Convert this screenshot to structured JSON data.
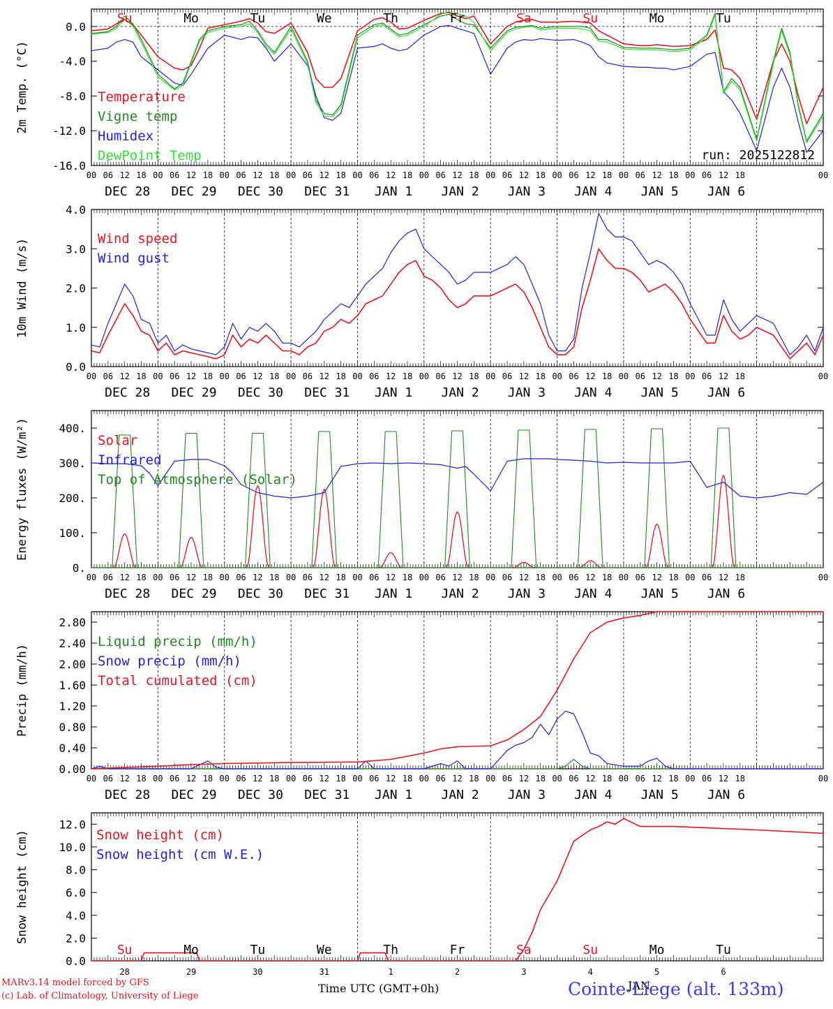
{
  "colors": {
    "red": "#e8141e",
    "green": "#1e8a1e",
    "lightgreen": "#2ee62e",
    "blue": "#1e1ee6",
    "axis": "#000000",
    "label_blue": "#3a3af0"
  },
  "days": {
    "top": [
      "Su",
      "Mo",
      "Tu",
      "We",
      "Th",
      "Fr",
      "Sa",
      "Su",
      "Mo",
      "Tu"
    ],
    "top_colors": [
      "red",
      "black",
      "black",
      "black",
      "black",
      "black",
      "red",
      "red",
      "black",
      "black"
    ],
    "hour_ticks": [
      "00",
      "06",
      "12",
      "18"
    ],
    "end_tick": "00",
    "dates": [
      "DEC 28",
      "DEC 29",
      "DEC 30",
      "DEC 31",
      "JAN  1",
      "JAN  2",
      "JAN  3",
      "JAN  4",
      "JAN  5",
      "JAN  6"
    ],
    "bottom_numbers": [
      "28",
      "29",
      "30",
      "31",
      "1",
      "2",
      "3",
      "4",
      "5",
      "6"
    ]
  },
  "chart_data": [
    {
      "id": "temp",
      "type": "line",
      "ylabel": "2m Temp. (°C)",
      "ylim": [
        -16,
        2
      ],
      "yticks": [
        0,
        -4,
        -8,
        -12,
        -16
      ],
      "ytick_labels": [
        "0.0",
        "-4.0",
        "-8.0",
        "-12.0",
        "-16.0"
      ],
      "zero_line": true,
      "annotation": "run: 2025122812",
      "x_hours": [
        0,
        6,
        9,
        12,
        15,
        18,
        24,
        30,
        33,
        36,
        39,
        42,
        48,
        54,
        57,
        60,
        63,
        66,
        72,
        78,
        81,
        84,
        87,
        90,
        96,
        102,
        105,
        108,
        111,
        114,
        120,
        126,
        129,
        132,
        135,
        138,
        144,
        150,
        153,
        156,
        159,
        162,
        168,
        174,
        177,
        180,
        183,
        186,
        192,
        198,
        201,
        204,
        207,
        210,
        216,
        222,
        225,
        228,
        231,
        234,
        240,
        246,
        249,
        252,
        255,
        258,
        264
      ],
      "series": [
        {
          "name": "Temperature",
          "color": "red",
          "values": [
            -0.5,
            -0.3,
            0.3,
            0.8,
            0.2,
            -1.0,
            -3.5,
            -4.8,
            -5.0,
            -4.5,
            -2.5,
            -0.2,
            0.2,
            0.6,
            0.9,
            0.4,
            -0.6,
            -0.8,
            0.4,
            -3.0,
            -6.0,
            -7.0,
            -7.0,
            -6.0,
            -0.5,
            0.8,
            1.0,
            0.5,
            -0.3,
            -0.2,
            0.7,
            1.5,
            1.6,
            1.2,
            0.9,
            1.2,
            -2.0,
            0.0,
            0.5,
            0.7,
            0.8,
            0.5,
            0.5,
            0.6,
            0.5,
            0.4,
            -0.5,
            -1.0,
            -2.0,
            -2.2,
            -2.2,
            -2.1,
            -2.2,
            -2.3,
            -2.2,
            -1.5,
            -0.4,
            -4.8,
            -5.0,
            -6.0,
            -10.7,
            -4.0,
            -2.0,
            -4.0,
            -8.0,
            -11.2,
            -7.0
          ]
        },
        {
          "name": "Vigne temp",
          "color": "green",
          "values": [
            -0.8,
            -0.6,
            0.0,
            1.2,
            0.3,
            -1.5,
            -5.5,
            -7.2,
            -6.5,
            -4.0,
            -1.5,
            -0.5,
            0.0,
            0.2,
            0.6,
            -0.5,
            -2.0,
            -3.0,
            0.0,
            -4.0,
            -8.5,
            -10.0,
            -10.2,
            -9.0,
            -1.0,
            0.2,
            0.4,
            -0.3,
            -1.0,
            -0.8,
            0.2,
            1.2,
            1.4,
            0.8,
            0.3,
            0.2,
            -2.5,
            -0.5,
            -0.1,
            0.0,
            0.1,
            -0.2,
            0.0,
            0.0,
            0.0,
            -0.2,
            -1.5,
            -1.5,
            -2.4,
            -2.5,
            -2.5,
            -2.5,
            -2.6,
            -2.7,
            -2.5,
            -1.0,
            1.5,
            -7.5,
            -6.0,
            -7.0,
            -13.0,
            -4.0,
            -0.2,
            -3.0,
            -9.0,
            -13.2,
            -10.0
          ]
        },
        {
          "name": "Humidex",
          "color": "blue",
          "values": [
            -2.8,
            -2.5,
            -1.8,
            -1.5,
            -1.8,
            -3.5,
            -5.0,
            -6.5,
            -6.8,
            -5.5,
            -4.0,
            -2.5,
            -1.0,
            -1.5,
            -1.2,
            -1.3,
            -2.5,
            -4.0,
            -2.0,
            -4.5,
            -8.0,
            -10.5,
            -10.8,
            -10.0,
            -2.5,
            -2.3,
            -2.0,
            -2.5,
            -2.8,
            -2.6,
            -1.0,
            0.0,
            0.1,
            -0.2,
            -0.5,
            -0.8,
            -5.5,
            -2.5,
            -1.8,
            -1.5,
            -1.6,
            -1.4,
            -1.6,
            -1.5,
            -1.8,
            -2.2,
            -3.5,
            -4.2,
            -4.6,
            -4.7,
            -4.7,
            -4.8,
            -4.8,
            -5.0,
            -4.6,
            -3.2,
            -3.0,
            -7.5,
            -8.5,
            -10.0,
            -14.3,
            -7.0,
            -4.8,
            -7.0,
            -11.0,
            -14.5,
            -12.0
          ]
        },
        {
          "name": "DewPoint Temp",
          "color": "lightgreen",
          "values": [
            -0.9,
            -0.7,
            -0.2,
            0.9,
            0.0,
            -1.8,
            -5.8,
            -7.3,
            -6.8,
            -4.2,
            -1.7,
            -0.7,
            -0.2,
            0.0,
            0.3,
            -0.7,
            -2.3,
            -3.2,
            -0.3,
            -4.3,
            -8.8,
            -10.3,
            -10.4,
            -9.3,
            -1.3,
            0.0,
            0.2,
            -0.5,
            -1.2,
            -1.0,
            0.0,
            1.4,
            1.7,
            1.5,
            1.2,
            0.5,
            -2.8,
            -0.7,
            -0.3,
            -0.1,
            0.0,
            -0.4,
            -0.2,
            -0.2,
            -0.3,
            -0.5,
            -1.7,
            -1.8,
            -2.6,
            -2.7,
            -2.7,
            -2.7,
            -2.8,
            -2.9,
            -2.7,
            -1.2,
            1.3,
            -7.7,
            -6.3,
            -7.3,
            -13.2,
            -4.3,
            -0.5,
            -3.3,
            -9.3,
            -13.4,
            -10.3
          ]
        }
      ]
    },
    {
      "id": "wind",
      "type": "line",
      "ylabel": "10m Wind (m/s)",
      "ylim": [
        0,
        4
      ],
      "yticks": [
        0,
        1,
        2,
        3,
        4
      ],
      "ytick_labels": [
        "0.0",
        "1.0",
        "2.0",
        "3.0",
        "4.0"
      ],
      "x_hours": [
        0,
        3,
        6,
        9,
        12,
        15,
        18,
        21,
        24,
        27,
        30,
        33,
        36,
        39,
        42,
        45,
        48,
        51,
        54,
        57,
        60,
        63,
        66,
        69,
        72,
        75,
        78,
        81,
        84,
        87,
        90,
        93,
        96,
        99,
        102,
        105,
        108,
        111,
        114,
        117,
        120,
        123,
        126,
        129,
        132,
        135,
        138,
        141,
        144,
        147,
        150,
        153,
        156,
        159,
        162,
        165,
        168,
        171,
        174,
        177,
        180,
        183,
        186,
        189,
        192,
        195,
        198,
        201,
        204,
        207,
        210,
        213,
        216,
        219,
        222,
        225,
        228,
        231,
        234,
        237,
        240,
        243,
        246,
        249,
        252,
        255,
        258,
        261,
        264
      ],
      "series": [
        {
          "name": "Wind speed",
          "color": "red",
          "values": [
            0.4,
            0.35,
            0.8,
            1.2,
            1.6,
            1.3,
            0.9,
            0.8,
            0.4,
            0.6,
            0.3,
            0.4,
            0.35,
            0.3,
            0.25,
            0.2,
            0.3,
            0.8,
            0.5,
            0.7,
            0.6,
            0.8,
            0.6,
            0.4,
            0.4,
            0.3,
            0.5,
            0.6,
            0.9,
            1.0,
            1.2,
            1.1,
            1.3,
            1.6,
            1.7,
            1.8,
            2.1,
            2.4,
            2.6,
            2.7,
            2.3,
            2.2,
            2.0,
            1.7,
            1.5,
            1.6,
            1.8,
            1.8,
            1.8,
            1.9,
            2.0,
            2.1,
            1.9,
            1.5,
            1.0,
            0.5,
            0.3,
            0.3,
            0.5,
            1.5,
            2.2,
            3.0,
            2.7,
            2.5,
            2.5,
            2.4,
            2.2,
            1.9,
            2.0,
            2.1,
            1.9,
            1.6,
            1.2,
            0.9,
            0.6,
            0.6,
            1.3,
            0.9,
            0.7,
            0.8,
            1.0,
            0.9,
            0.8,
            0.5,
            0.2,
            0.4,
            0.6,
            0.3,
            0.8
          ]
        },
        {
          "name": "Wind gust",
          "color": "blue",
          "values": [
            0.55,
            0.5,
            1.1,
            1.6,
            2.1,
            1.8,
            1.2,
            1.1,
            0.6,
            0.8,
            0.4,
            0.55,
            0.45,
            0.4,
            0.35,
            0.3,
            0.5,
            1.1,
            0.7,
            1.0,
            0.9,
            1.1,
            0.9,
            0.6,
            0.6,
            0.5,
            0.7,
            0.9,
            1.2,
            1.4,
            1.6,
            1.5,
            1.8,
            2.1,
            2.3,
            2.5,
            2.9,
            3.2,
            3.4,
            3.5,
            3.0,
            2.8,
            2.6,
            2.4,
            2.1,
            2.2,
            2.4,
            2.4,
            2.4,
            2.5,
            2.6,
            2.8,
            2.6,
            2.1,
            1.6,
            0.8,
            0.4,
            0.4,
            0.7,
            2.0,
            2.9,
            3.9,
            3.5,
            3.3,
            3.3,
            3.2,
            2.9,
            2.6,
            2.7,
            2.6,
            2.4,
            2.1,
            1.6,
            1.2,
            0.8,
            0.8,
            1.7,
            1.2,
            0.9,
            1.1,
            1.3,
            1.2,
            1.1,
            0.7,
            0.3,
            0.5,
            0.8,
            0.4,
            1.0
          ]
        }
      ]
    },
    {
      "id": "energy",
      "type": "line",
      "ylabel": "Energy fluxes (W/m²)",
      "ylim": [
        0,
        450
      ],
      "yticks": [
        0,
        100,
        200,
        300,
        400
      ],
      "ytick_labels": [
        "0.",
        "100.",
        "200.",
        "300.",
        "400."
      ],
      "diurnal_peak_hour": 12,
      "solar_peaks": [
        97,
        87,
        235,
        225,
        43,
        160,
        15,
        20,
        125,
        265
      ],
      "toa_peaks": [
        380,
        385,
        385,
        390,
        390,
        392,
        394,
        396,
        398,
        400
      ],
      "series": [
        {
          "name": "Solar",
          "color": "red"
        },
        {
          "name": "Infrared",
          "color": "blue",
          "x_hours": [
            0,
            6,
            12,
            18,
            21,
            24,
            30,
            36,
            42,
            48,
            51,
            54,
            60,
            66,
            72,
            78,
            84,
            90,
            96,
            102,
            108,
            114,
            120,
            126,
            132,
            135,
            138,
            144,
            150,
            156,
            162,
            165,
            168,
            174,
            180,
            186,
            192,
            198,
            204,
            210,
            216,
            222,
            228,
            234,
            240,
            246,
            252,
            258,
            264
          ],
          "values": [
            300,
            298,
            298,
            292,
            270,
            235,
            305,
            310,
            310,
            292,
            270,
            238,
            215,
            205,
            200,
            205,
            215,
            290,
            298,
            300,
            298,
            300,
            298,
            295,
            285,
            290,
            268,
            220,
            305,
            312,
            312,
            312,
            310,
            308,
            305,
            300,
            302,
            300,
            300,
            300,
            305,
            230,
            245,
            205,
            200,
            205,
            215,
            210,
            245
          ]
        },
        {
          "name": "Top of Atmosphere (Solar)",
          "color": "green"
        }
      ]
    },
    {
      "id": "precip",
      "type": "line",
      "ylabel": "Precip (mm/h)",
      "ylim": [
        0,
        3.0
      ],
      "yticks": [
        0,
        0.4,
        0.8,
        1.2,
        1.6,
        2.0,
        2.4,
        2.8
      ],
      "ytick_labels": [
        "0.00",
        "0.40",
        "0.80",
        "1.20",
        "1.60",
        "2.00",
        "2.40",
        "2.80"
      ],
      "series": [
        {
          "name": "Liquid precip (mm/h)",
          "color": "green",
          "x_hours": [
            0,
            168,
            171,
            174,
            177,
            180,
            264
          ],
          "values": [
            0,
            0,
            0.05,
            0.18,
            0.05,
            0,
            0
          ]
        },
        {
          "name": "Snow precip (mm/h)",
          "color": "blue",
          "x_hours": [
            0,
            3,
            6,
            36,
            42,
            45,
            48,
            90,
            96,
            99,
            102,
            108,
            120,
            126,
            129,
            132,
            135,
            138,
            144,
            150,
            153,
            156,
            159,
            162,
            165,
            168,
            171,
            174,
            177,
            180,
            183,
            186,
            192,
            198,
            201,
            204,
            207,
            210,
            264
          ],
          "values": [
            0,
            0.05,
            0,
            0,
            0.15,
            0.03,
            0,
            0,
            0,
            0.15,
            0,
            0,
            0,
            0.1,
            0.05,
            0.15,
            0,
            0,
            0,
            0.35,
            0.45,
            0.5,
            0.6,
            0.85,
            0.65,
            0.95,
            1.1,
            1.05,
            0.7,
            0.3,
            0.25,
            0.1,
            0.05,
            0.05,
            0.15,
            0.2,
            0.05,
            0,
            0
          ]
        },
        {
          "name": "Total cumulated (cm)",
          "color": "red",
          "x_hours": [
            0,
            24,
            36,
            48,
            72,
            96,
            108,
            120,
            126,
            132,
            144,
            150,
            156,
            162,
            168,
            174,
            180,
            186,
            192,
            198,
            204,
            264
          ],
          "values": [
            0,
            0.05,
            0.08,
            0.1,
            0.12,
            0.13,
            0.18,
            0.3,
            0.38,
            0.42,
            0.44,
            0.55,
            0.75,
            1.0,
            1.5,
            2.1,
            2.6,
            2.8,
            2.88,
            2.93,
            3.0,
            3.0
          ]
        }
      ]
    },
    {
      "id": "snow",
      "type": "line",
      "ylabel": "Snow height (cm)",
      "ylim": [
        0,
        13
      ],
      "yticks": [
        0,
        2,
        4,
        6,
        8,
        10,
        12
      ],
      "ytick_labels": [
        "0.0",
        "2.0",
        "4.0",
        "6.0",
        "8.0",
        "10.0",
        "12.0"
      ],
      "series": [
        {
          "name": "Snow height (cm)",
          "color": "red",
          "x_hours": [
            0,
            18,
            19,
            38,
            39,
            96,
            97,
            106,
            107,
            153,
            156,
            159,
            162,
            168,
            174,
            180,
            183,
            186,
            189,
            192,
            198,
            210,
            240,
            264
          ],
          "values": [
            0,
            0,
            0.7,
            0.7,
            0,
            0,
            0.7,
            0.7,
            0,
            0,
            1.0,
            2.5,
            4.5,
            7.0,
            10.5,
            11.5,
            11.8,
            12.2,
            12.0,
            12.5,
            11.8,
            11.8,
            11.5,
            11.2
          ]
        },
        {
          "name": "Snow height (cm W.E.)",
          "color": "blue",
          "values": []
        }
      ]
    }
  ],
  "footer": {
    "xlabel": "Time UTC (GMT+0h)",
    "credit1": "MARv3.14 model forced by GFS",
    "credit2": "(c) Lab. of Climatology, University of Liege",
    "station": "Cointe-Liege (alt. 133m)",
    "month": "JAN"
  }
}
